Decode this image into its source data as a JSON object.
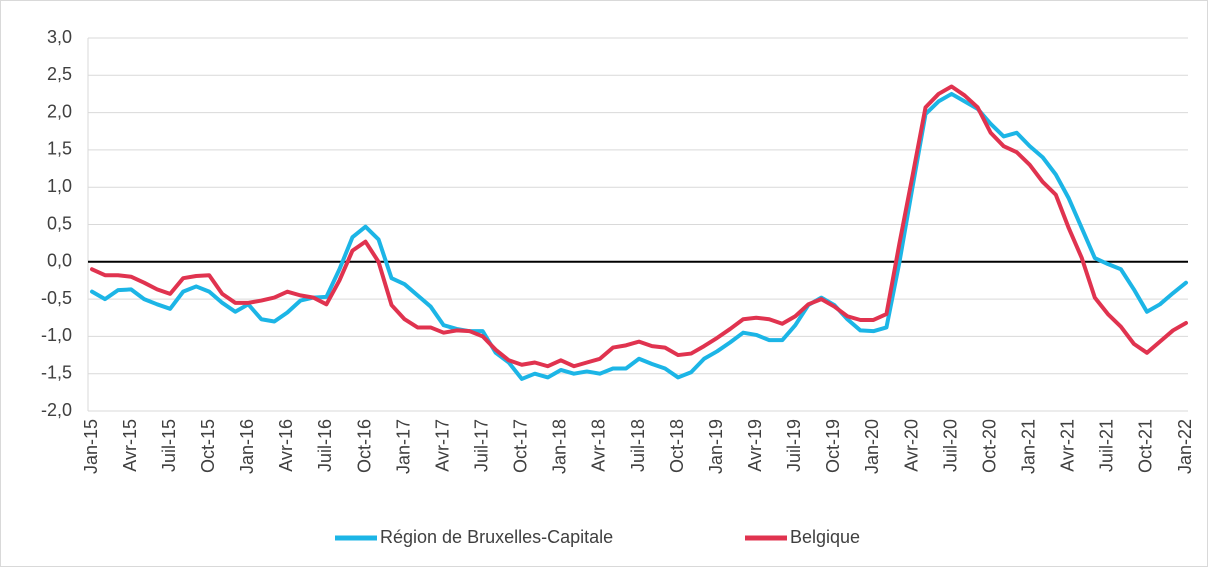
{
  "chart_data": {
    "type": "line",
    "categories": [
      "Jan-15",
      null,
      null,
      "Avr-15",
      null,
      null,
      "Juil-15",
      null,
      null,
      "Oct-15",
      null,
      null,
      "Jan-16",
      null,
      null,
      "Avr-16",
      null,
      null,
      "Juil-16",
      null,
      null,
      "Oct-16",
      null,
      null,
      "Jan-17",
      null,
      null,
      "Avr-17",
      null,
      null,
      "Juil-17",
      null,
      null,
      "Oct-17",
      null,
      null,
      "Jan-18",
      null,
      null,
      "Avr-18",
      null,
      null,
      "Juil-18",
      null,
      null,
      "Oct-18",
      null,
      null,
      "Jan-19",
      null,
      null,
      "Avr-19",
      null,
      null,
      "Juil-19",
      null,
      null,
      "Oct-19",
      null,
      null,
      "Jan-20",
      null,
      null,
      "Avr-20",
      null,
      null,
      "Juil-20",
      null,
      null,
      "Oct-20",
      null,
      null,
      "Jan-21",
      null,
      null,
      "Avr-21",
      null,
      null,
      "Juil-21",
      null,
      null,
      "Oct-21",
      null,
      null,
      "Jan-22"
    ],
    "series": [
      {
        "name": "Région de Bruxelles-Capitale",
        "color": "#1cb5e6",
        "values": [
          -0.4,
          -0.5,
          -0.38,
          -0.37,
          -0.5,
          -0.57,
          -0.63,
          -0.4,
          -0.33,
          -0.4,
          -0.55,
          -0.67,
          -0.57,
          -0.77,
          -0.8,
          -0.68,
          -0.52,
          -0.48,
          -0.47,
          -0.1,
          0.33,
          0.47,
          0.3,
          -0.22,
          -0.3,
          -0.45,
          -0.6,
          -0.85,
          -0.9,
          -0.93,
          -0.93,
          -1.22,
          -1.35,
          -1.57,
          -1.5,
          -1.55,
          -1.45,
          -1.5,
          -1.47,
          -1.5,
          -1.43,
          -1.43,
          -1.3,
          -1.37,
          -1.43,
          -1.55,
          -1.48,
          -1.3,
          -1.2,
          -1.08,
          -0.95,
          -0.98,
          -1.05,
          -1.05,
          -0.85,
          -0.58,
          -0.48,
          -0.58,
          -0.77,
          -0.92,
          -0.93,
          -0.88,
          0.0,
          1.0,
          1.98,
          2.15,
          2.25,
          2.15,
          2.05,
          1.85,
          1.68,
          1.73,
          1.55,
          1.4,
          1.17,
          0.85,
          0.45,
          0.05,
          -0.03,
          -0.1,
          -0.37,
          -0.67,
          -0.57,
          -0.42,
          -0.28
        ]
      },
      {
        "name": "Belgique",
        "color": "#e0334f",
        "values": [
          -0.1,
          -0.18,
          -0.18,
          -0.2,
          -0.28,
          -0.37,
          -0.43,
          -0.22,
          -0.19,
          -0.18,
          -0.43,
          -0.55,
          -0.55,
          -0.52,
          -0.48,
          -0.4,
          -0.45,
          -0.48,
          -0.57,
          -0.25,
          0.15,
          0.27,
          0.0,
          -0.58,
          -0.77,
          -0.88,
          -0.88,
          -0.95,
          -0.92,
          -0.93,
          -1.0,
          -1.18,
          -1.32,
          -1.38,
          -1.35,
          -1.4,
          -1.32,
          -1.4,
          -1.35,
          -1.3,
          -1.15,
          -1.12,
          -1.07,
          -1.13,
          -1.15,
          -1.25,
          -1.23,
          -1.13,
          -1.02,
          -0.9,
          -0.77,
          -0.75,
          -0.77,
          -0.83,
          -0.73,
          -0.57,
          -0.5,
          -0.6,
          -0.73,
          -0.78,
          -0.78,
          -0.7,
          0.25,
          1.15,
          2.07,
          2.25,
          2.35,
          2.23,
          2.07,
          1.73,
          1.55,
          1.47,
          1.3,
          1.07,
          0.9,
          0.45,
          0.05,
          -0.48,
          -0.7,
          -0.87,
          -1.1,
          -1.22,
          -1.07,
          -0.92,
          -0.82
        ]
      }
    ],
    "ylim": [
      -2,
      3
    ],
    "yticks": [
      {
        "value": -2,
        "label": "-2,0"
      },
      {
        "value": -1.5,
        "label": "-1,5"
      },
      {
        "value": -1,
        "label": "-1,0"
      },
      {
        "value": -0.5,
        "label": "-0,5"
      },
      {
        "value": 0,
        "label": "0,0"
      },
      {
        "value": 0.5,
        "label": "0,5"
      },
      {
        "value": 1,
        "label": "1,0"
      },
      {
        "value": 1.5,
        "label": "1,5"
      },
      {
        "value": 2,
        "label": "2,0"
      },
      {
        "value": 2.5,
        "label": "2,5"
      },
      {
        "value": 3,
        "label": "3,0"
      }
    ],
    "grid": true,
    "legend": "bottom"
  }
}
